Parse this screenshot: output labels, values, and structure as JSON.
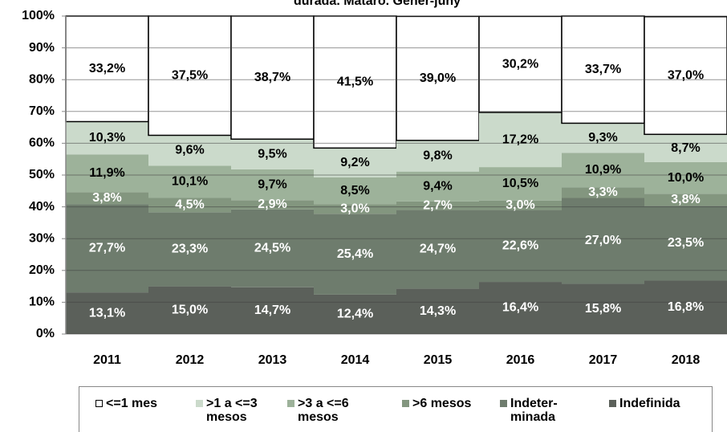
{
  "chart_data": {
    "type": "stacked_bar",
    "title": "durada. Mataró. Gener-juny",
    "categories": [
      "2011",
      "2012",
      "2013",
      "2014",
      "2015",
      "2016",
      "2017",
      "2018"
    ],
    "series": [
      {
        "name": "Indefinida",
        "color": "#5b605a",
        "text_color": "#ffffff",
        "values": [
          13.1,
          15.0,
          14.7,
          12.4,
          14.3,
          16.4,
          15.8,
          16.8
        ],
        "value_labels": [
          "13,1%",
          "15,0%",
          "14,7%",
          "12,4%",
          "14,3%",
          "16,4%",
          "15,8%",
          "16,8%"
        ]
      },
      {
        "name": "Indeter-minada",
        "color": "#6e7c6d",
        "text_color": "#ffffff",
        "values": [
          27.7,
          23.3,
          24.5,
          25.4,
          24.7,
          22.6,
          27.0,
          23.5
        ],
        "value_labels": [
          "27,7%",
          "23,3%",
          "24,5%",
          "25,4%",
          "24,7%",
          "22,6%",
          "27,0%",
          "23,5%"
        ]
      },
      {
        "name": ">6 mesos",
        "color": "#83967f",
        "text_color": "#ffffff",
        "values": [
          3.8,
          4.5,
          2.9,
          3.0,
          2.7,
          3.0,
          3.3,
          3.8
        ],
        "value_labels": [
          "3,8%",
          "4,5%",
          "2,9%",
          "3,0%",
          "2,7%",
          "3,0%",
          "3,3%",
          "3,8%"
        ]
      },
      {
        "name": ">3 a <=6 mesos",
        "color": "#9db29a",
        "text_color": "#000000",
        "values": [
          11.9,
          10.1,
          9.7,
          8.5,
          9.4,
          10.5,
          10.9,
          10.0
        ],
        "value_labels": [
          "11,9%",
          "10,1%",
          "9,7%",
          "8,5%",
          "9,4%",
          "10,5%",
          "10,9%",
          "10,0%"
        ]
      },
      {
        "name": ">1 a <=3 mesos",
        "color": "#cbdacb",
        "text_color": "#000000",
        "values": [
          10.3,
          9.6,
          9.5,
          9.2,
          9.8,
          17.2,
          9.3,
          8.7
        ],
        "value_labels": [
          "10,3%",
          "9,6%",
          "9,5%",
          "9,2%",
          "9,8%",
          "17,2%",
          "9,3%",
          "8,7%"
        ]
      },
      {
        "name": "<=1 mes",
        "color": "#ffffff",
        "text_color": "#000000",
        "values": [
          33.2,
          37.5,
          38.7,
          41.5,
          39.0,
          30.2,
          33.7,
          37.0
        ],
        "value_labels": [
          "33,2%",
          "37,5%",
          "38,7%",
          "41,5%",
          "39,0%",
          "30,2%",
          "33,7%",
          "37,0%"
        ]
      }
    ],
    "ylim": [
      0,
      100
    ],
    "yticks": [
      {
        "value": 0,
        "label": "0%"
      },
      {
        "value": 10,
        "label": "10%"
      },
      {
        "value": 20,
        "label": "20%"
      },
      {
        "value": 30,
        "label": "30%"
      },
      {
        "value": 40,
        "label": "40%"
      },
      {
        "value": 50,
        "label": "50%"
      },
      {
        "value": 60,
        "label": "60%"
      },
      {
        "value": 70,
        "label": "70%"
      },
      {
        "value": 80,
        "label": "80%"
      },
      {
        "value": 90,
        "label": "90%"
      },
      {
        "value": 100,
        "label": "100%"
      }
    ],
    "grid": true
  }
}
